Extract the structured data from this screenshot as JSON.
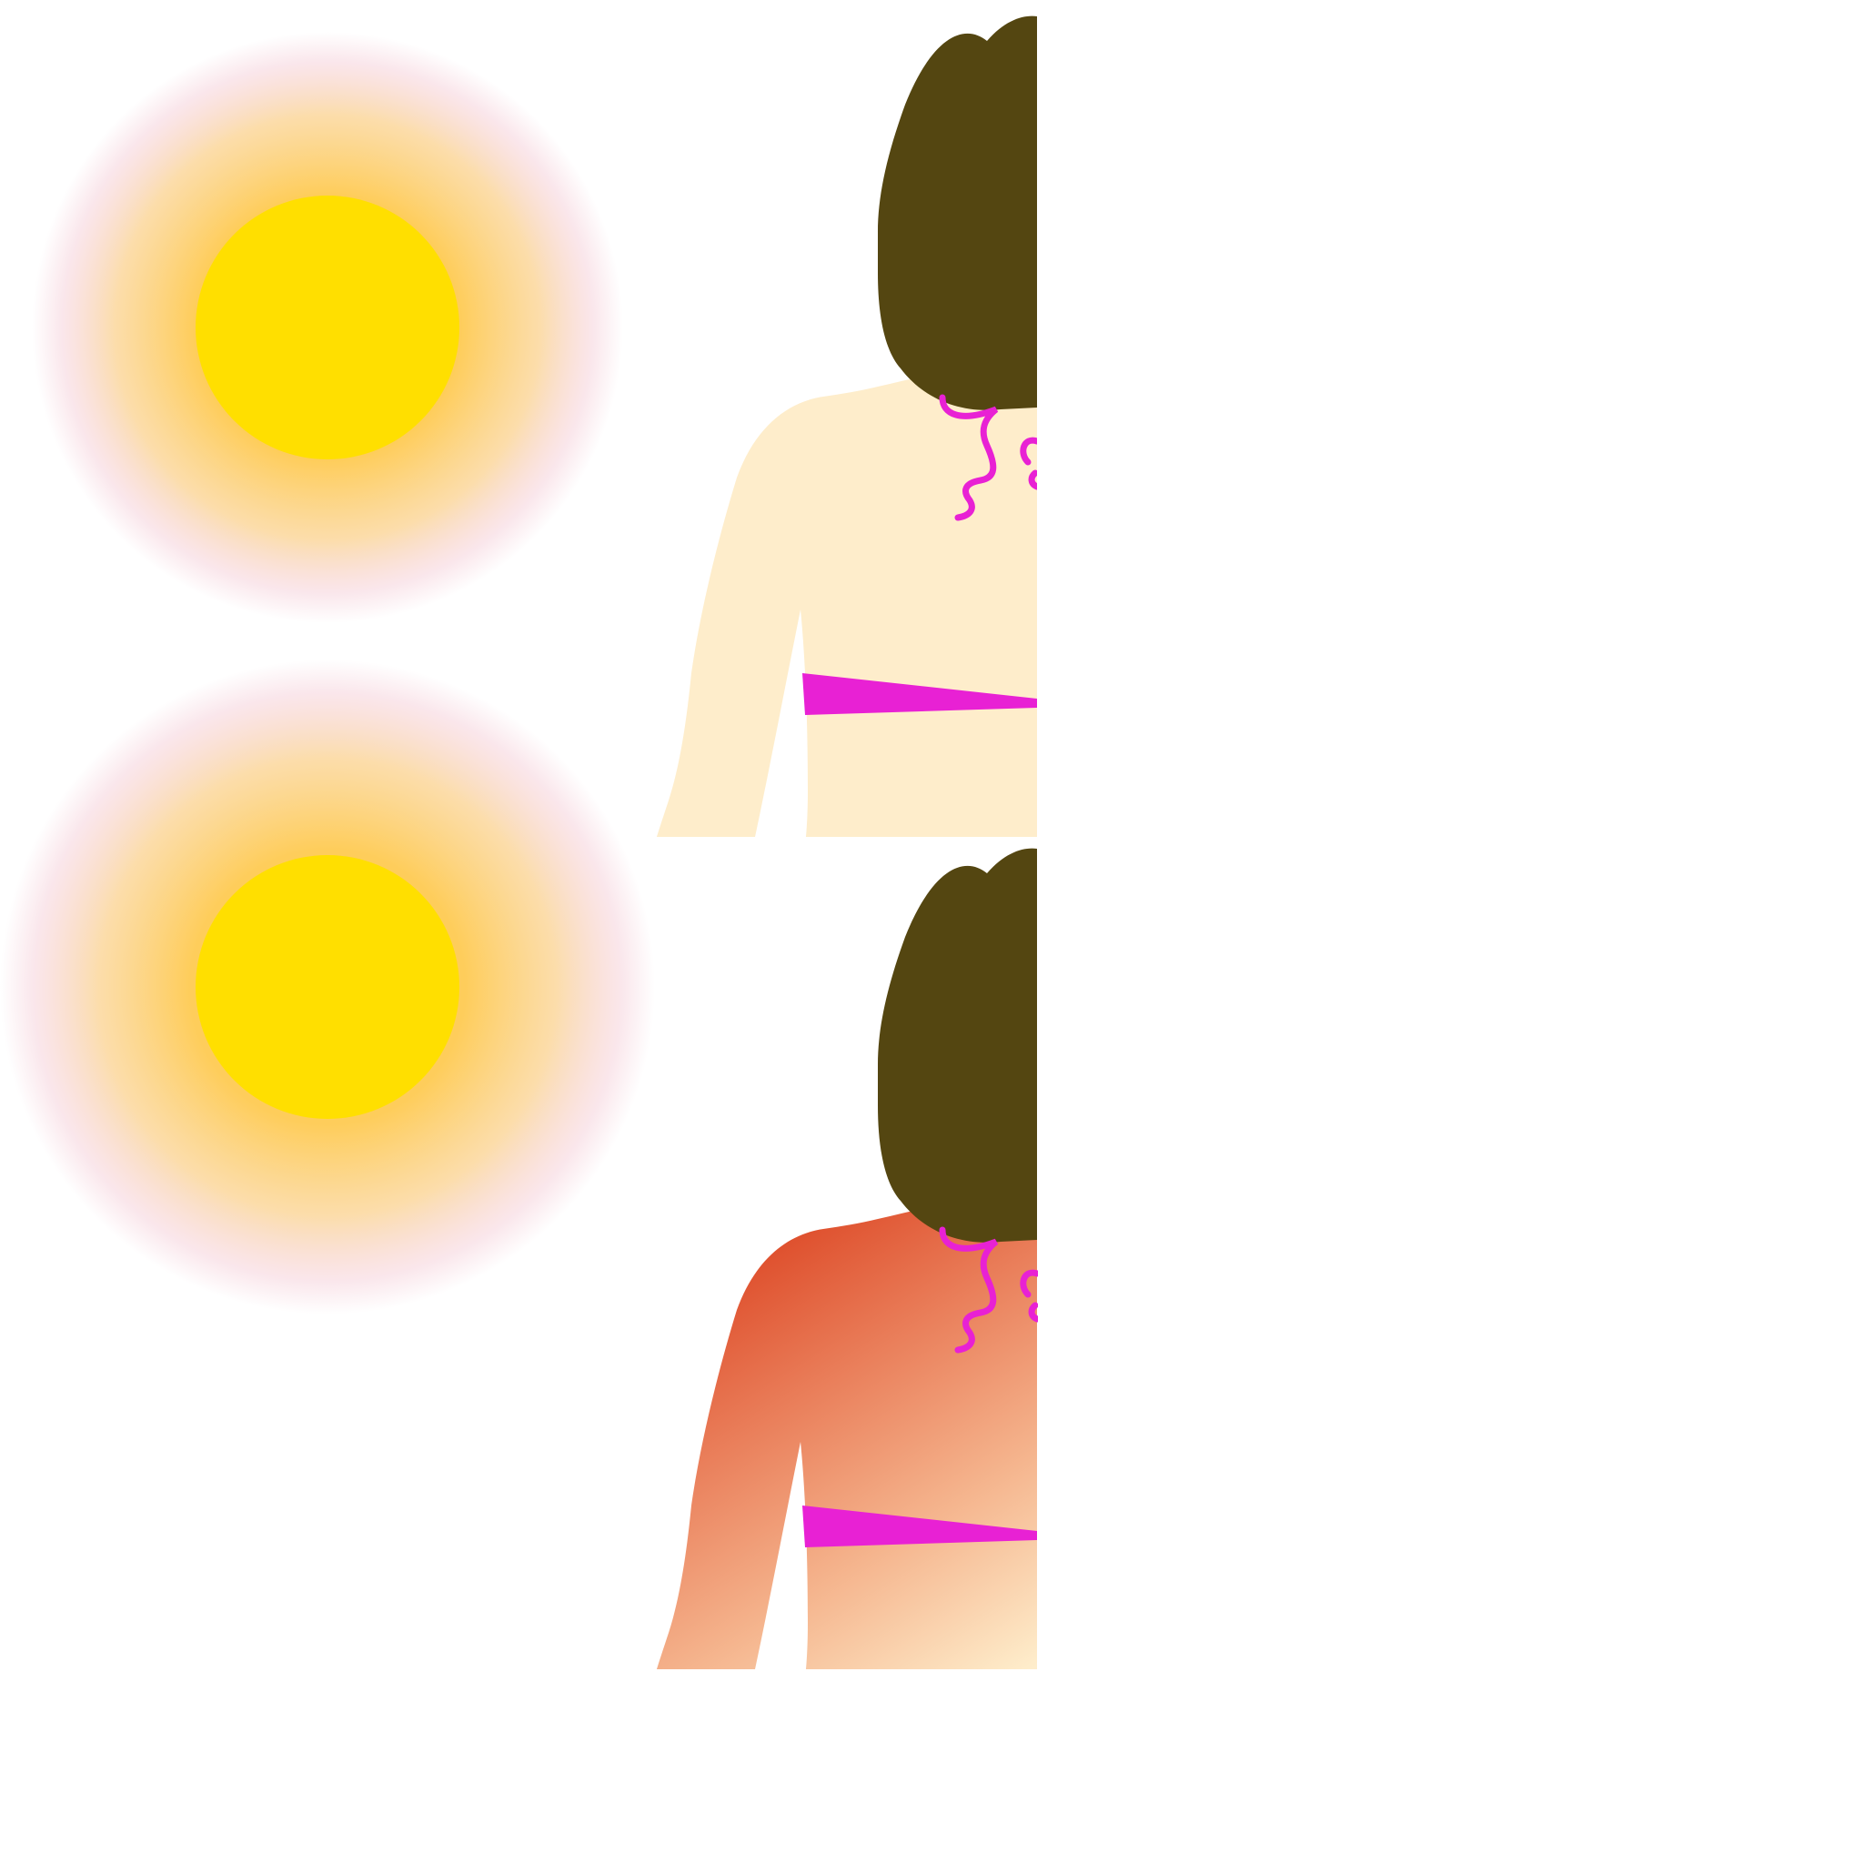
{
  "panels": [
    {
      "id": "before",
      "sun_glow": "normal",
      "skin_state": "untanned"
    },
    {
      "id": "after",
      "sun_glow": "strong",
      "skin_state": "sunburned"
    }
  ],
  "colors": {
    "background": "#ffffff",
    "sun_core": "#ffdf00",
    "sun_halo": "#fecd5b",
    "sun_fringe": "#f4c9d4",
    "hair": "#544611",
    "skin": "#feedcb",
    "sunburn_deep": "#dc4523",
    "sunburn_mid": "#e97c58",
    "sunburn_light": "#f5b58e",
    "bikini": "#e821d4"
  },
  "icons": [
    "sun-icon",
    "woman-back-figure",
    "bikini-strap",
    "bikini-tie"
  ]
}
